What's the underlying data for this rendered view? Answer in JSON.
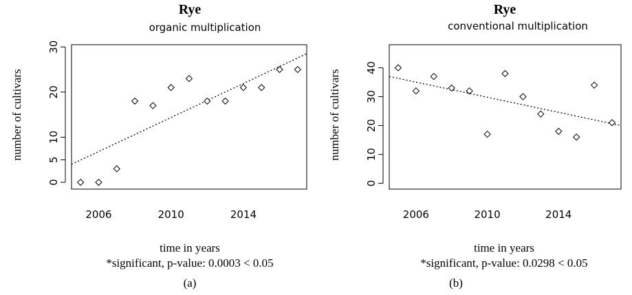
{
  "chart_data": [
    {
      "type": "scatter",
      "panel_label": "(a)",
      "title": "Rye",
      "subtitle": "organic multiplication",
      "xlabel": "time in years",
      "ylabel": "number of cultivars",
      "note": "*significant, p-value:  0.0003  < 0.05",
      "xlim": [
        2004.5,
        2017.5
      ],
      "ylim": [
        -1.5,
        30.5
      ],
      "xticks": [
        2006,
        2010,
        2014
      ],
      "yticks": [
        0,
        5,
        10,
        20,
        30
      ],
      "points": [
        {
          "x": 2005,
          "y": 0
        },
        {
          "x": 2006,
          "y": 0
        },
        {
          "x": 2007,
          "y": 3
        },
        {
          "x": 2008,
          "y": 18
        },
        {
          "x": 2009,
          "y": 17
        },
        {
          "x": 2010,
          "y": 21
        },
        {
          "x": 2011,
          "y": 23
        },
        {
          "x": 2012,
          "y": 18
        },
        {
          "x": 2013,
          "y": 18
        },
        {
          "x": 2014,
          "y": 21
        },
        {
          "x": 2015,
          "y": 21
        },
        {
          "x": 2016,
          "y": 25
        },
        {
          "x": 2017,
          "y": 25
        }
      ],
      "trend": {
        "style": "dotted",
        "from": {
          "x": 2004.5,
          "y": 4
        },
        "to": {
          "x": 2017.5,
          "y": 28.5
        }
      }
    },
    {
      "type": "scatter",
      "panel_label": "(b)",
      "title": "Rye",
      "subtitle": "conventional multiplication",
      "xlabel": "time in years",
      "ylabel": "number of cultivars",
      "note": "*significant, p-value:  0.0298  < 0.05",
      "xlim": [
        2004.5,
        2017.5
      ],
      "ylim": [
        -2,
        48
      ],
      "xticks": [
        2006,
        2010,
        2014
      ],
      "yticks": [
        0,
        10,
        20,
        30,
        40
      ],
      "points": [
        {
          "x": 2005,
          "y": 40
        },
        {
          "x": 2006,
          "y": 32
        },
        {
          "x": 2007,
          "y": 37
        },
        {
          "x": 2008,
          "y": 33
        },
        {
          "x": 2009,
          "y": 32
        },
        {
          "x": 2010,
          "y": 17
        },
        {
          "x": 2011,
          "y": 38
        },
        {
          "x": 2012,
          "y": 30
        },
        {
          "x": 2013,
          "y": 24
        },
        {
          "x": 2014,
          "y": 18
        },
        {
          "x": 2015,
          "y": 16
        },
        {
          "x": 2016,
          "y": 34
        },
        {
          "x": 2017,
          "y": 21
        }
      ],
      "trend": {
        "style": "dotted",
        "from": {
          "x": 2004.5,
          "y": 37
        },
        "to": {
          "x": 2017.5,
          "y": 20
        }
      }
    }
  ]
}
